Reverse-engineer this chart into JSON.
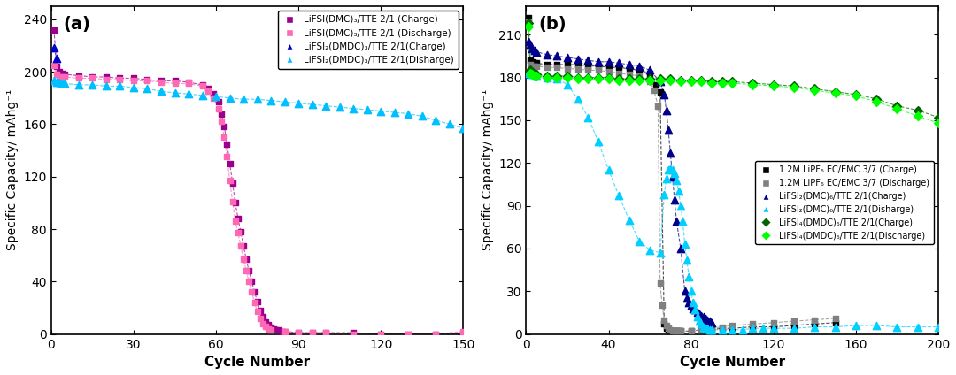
{
  "panel_a": {
    "title": "(a)",
    "xlabel": "Cycle Number",
    "ylabel": "Specific Capacity/ mAhg⁻¹",
    "xlim": [
      0,
      150
    ],
    "ylim": [
      0,
      250
    ],
    "xticks": [
      0,
      30,
      60,
      90,
      120,
      150
    ],
    "yticks": [
      0,
      40,
      80,
      120,
      160,
      200,
      240
    ],
    "series": [
      {
        "label": "LiFSI(DMC)₃/TTE 2/1 (Charge)",
        "color": "#9B008B",
        "marker": "s",
        "marker_size": 5,
        "x": [
          1,
          2,
          3,
          4,
          5,
          10,
          15,
          20,
          25,
          30,
          35,
          40,
          45,
          50,
          55,
          57,
          59,
          61,
          62,
          63,
          64,
          65,
          66,
          67,
          68,
          69,
          70,
          71,
          72,
          73,
          74,
          75,
          76,
          77,
          78,
          79,
          80,
          81,
          82,
          83,
          84,
          85,
          90,
          95,
          100,
          110,
          120,
          130,
          140,
          150
        ],
        "y": [
          232,
          204,
          200,
          199,
          198,
          197,
          196,
          196,
          195,
          195,
          194,
          193,
          193,
          192,
          190,
          187,
          183,
          177,
          168,
          158,
          145,
          130,
          115,
          100,
          88,
          78,
          67,
          57,
          48,
          40,
          32,
          25,
          18,
          13,
          9,
          7,
          5,
          4,
          3,
          3,
          2,
          2,
          1,
          1,
          1,
          1,
          0,
          0,
          0,
          0
        ]
      },
      {
        "label": "LiFSI(DMC)₃/TTE 2/1 (Discharge)",
        "color": "#FF69B4",
        "marker": "s",
        "marker_size": 5,
        "x": [
          1,
          2,
          3,
          4,
          5,
          10,
          15,
          20,
          25,
          30,
          35,
          40,
          45,
          50,
          55,
          57,
          59,
          61,
          62,
          63,
          64,
          65,
          66,
          67,
          68,
          69,
          70,
          71,
          72,
          73,
          74,
          75,
          76,
          77,
          78,
          79,
          80,
          85,
          90,
          95,
          100,
          110,
          120,
          130,
          140,
          150
        ],
        "y": [
          205,
          198,
          196,
          196,
          196,
          195,
          195,
          194,
          194,
          193,
          193,
          192,
          191,
          191,
          189,
          185,
          180,
          172,
          162,
          150,
          135,
          117,
          101,
          86,
          77,
          67,
          57,
          48,
          40,
          32,
          24,
          17,
          12,
          8,
          6,
          4,
          3,
          2,
          1,
          1,
          1,
          0,
          0,
          0,
          0,
          2
        ]
      },
      {
        "label": "LiFSI₂(DMDC)₃/TTE 2/1(Charge)",
        "color": "#0000CD",
        "marker": "^",
        "marker_size": 6,
        "x": [
          1,
          2
        ],
        "y": [
          218,
          210
        ]
      },
      {
        "label": "LiFSI₂(DMDC)₃/TTE 2/1(Disharge)",
        "color": "#00BFFF",
        "marker": "^",
        "marker_size": 6,
        "x": [
          1,
          2,
          3,
          4,
          5,
          10,
          15,
          20,
          25,
          30,
          35,
          40,
          45,
          50,
          55,
          60,
          65,
          70,
          75,
          80,
          85,
          90,
          95,
          100,
          105,
          110,
          115,
          120,
          125,
          130,
          135,
          140,
          145,
          150
        ],
        "y": [
          193,
          192,
          192,
          191,
          191,
          190,
          190,
          189,
          189,
          188,
          187,
          185,
          184,
          183,
          182,
          181,
          180,
          179,
          179,
          178,
          177,
          176,
          175,
          174,
          173,
          172,
          171,
          170,
          169,
          168,
          166,
          163,
          160,
          157
        ]
      }
    ]
  },
  "panel_b": {
    "title": "(b)",
    "xlabel": "Cycle Number",
    "ylabel": "Specific Capacity/ mAhg⁻¹",
    "xlim": [
      0,
      200
    ],
    "ylim": [
      0,
      230
    ],
    "xticks": [
      0,
      40,
      80,
      120,
      160,
      200
    ],
    "yticks": [
      0,
      30,
      60,
      90,
      120,
      150,
      180,
      210
    ],
    "series": [
      {
        "label": "1.2M LiPF₆ EC/EMC 3/7 (Charge)",
        "color": "#000000",
        "marker": "s",
        "marker_size": 5,
        "x": [
          1,
          2,
          3,
          4,
          5,
          10,
          15,
          20,
          25,
          30,
          35,
          40,
          45,
          50,
          55,
          60,
          63,
          65,
          67,
          68,
          69,
          70,
          71,
          72,
          73,
          74,
          75,
          80,
          85,
          90,
          95,
          100,
          110,
          120,
          130,
          140,
          150
        ],
        "y": [
          222,
          192,
          191,
          190,
          190,
          189,
          189,
          189,
          189,
          188,
          188,
          187,
          187,
          186,
          185,
          183,
          175,
          170,
          7,
          4,
          3,
          2,
          2,
          2,
          2,
          2,
          2,
          2,
          3,
          3,
          4,
          4,
          5,
          5,
          6,
          7,
          8
        ]
      },
      {
        "label": "1.2M LiPF₆ EC/EMC 3/7 (Discharge)",
        "color": "#808080",
        "marker": "s",
        "marker_size": 5,
        "x": [
          1,
          2,
          3,
          4,
          5,
          10,
          15,
          20,
          25,
          30,
          35,
          40,
          45,
          50,
          55,
          60,
          62,
          64,
          65,
          66,
          67,
          68,
          69,
          70,
          71,
          72,
          73,
          74,
          75,
          80,
          85,
          90,
          95,
          100,
          110,
          120,
          130,
          140,
          150
        ],
        "y": [
          219,
          189,
          188,
          188,
          188,
          187,
          187,
          186,
          186,
          185,
          185,
          184,
          183,
          182,
          181,
          177,
          171,
          160,
          36,
          20,
          10,
          6,
          4,
          3,
          2,
          2,
          2,
          2,
          2,
          2,
          3,
          4,
          5,
          6,
          7,
          8,
          9,
          10,
          11
        ]
      },
      {
        "label": "LiFSI₂(DMC)₆/TTE 2/1(Charge)",
        "color": "#00008B",
        "marker": "^",
        "marker_size": 6,
        "x": [
          1,
          2,
          3,
          4,
          5,
          10,
          15,
          20,
          25,
          30,
          35,
          40,
          45,
          50,
          55,
          60,
          65,
          67,
          68,
          69,
          70,
          71,
          72,
          73,
          75,
          77,
          78,
          79,
          80,
          81,
          82,
          83,
          84,
          85,
          86,
          87,
          88,
          89,
          90
        ],
        "y": [
          205,
          203,
          200,
          199,
          198,
          196,
          195,
          194,
          193,
          192,
          191,
          191,
          190,
          189,
          188,
          185,
          177,
          168,
          157,
          143,
          127,
          110,
          94,
          79,
          60,
          30,
          25,
          22,
          20,
          18,
          17,
          15,
          14,
          13,
          12,
          11,
          10,
          9,
          8
        ]
      },
      {
        "label": "LiFSI₂(DMC)₆/TTE 2/1(Disharge)",
        "color": "#00CFFF",
        "marker": "^",
        "marker_size": 6,
        "x": [
          1,
          2,
          3,
          4,
          5,
          10,
          15,
          20,
          25,
          30,
          35,
          40,
          45,
          50,
          55,
          60,
          65,
          67,
          68,
          69,
          70,
          71,
          72,
          73,
          74,
          75,
          76,
          77,
          78,
          79,
          80,
          81,
          82,
          83,
          84,
          85,
          86,
          87,
          88,
          89,
          90,
          95,
          100,
          105,
          110,
          115,
          120,
          130,
          140,
          150,
          160,
          170,
          180,
          190,
          200
        ],
        "y": [
          183,
          183,
          182,
          182,
          181,
          180,
          179,
          175,
          165,
          152,
          135,
          115,
          97,
          80,
          65,
          59,
          57,
          98,
          109,
          115,
          116,
          115,
          113,
          108,
          100,
          90,
          79,
          63,
          52,
          40,
          30,
          22,
          17,
          12,
          9,
          7,
          5,
          4,
          4,
          3,
          3,
          3,
          3,
          3,
          4,
          4,
          4,
          4,
          5,
          5,
          6,
          6,
          5,
          5,
          5
        ]
      },
      {
        "label": "LiFSI₄(DMDC)₆/TTE 2/1(Charge)",
        "color": "#006400",
        "marker": "D",
        "marker_size": 5,
        "x": [
          1,
          2,
          3,
          4,
          5,
          10,
          15,
          20,
          25,
          30,
          35,
          40,
          45,
          50,
          55,
          60,
          65,
          70,
          75,
          80,
          85,
          90,
          95,
          100,
          110,
          120,
          130,
          140,
          150,
          160,
          170,
          180,
          190,
          200
        ],
        "y": [
          218,
          185,
          183,
          182,
          182,
          181,
          181,
          181,
          180,
          180,
          180,
          180,
          179,
          179,
          179,
          179,
          179,
          179,
          178,
          178,
          178,
          177,
          177,
          177,
          176,
          175,
          174,
          172,
          170,
          168,
          165,
          160,
          157,
          152
        ]
      },
      {
        "label": "LiFSI₄(DMDC)₆/TTE 2/1(Discharge)",
        "color": "#00FF00",
        "marker": "D",
        "marker_size": 5,
        "x": [
          1,
          2,
          3,
          4,
          5,
          10,
          15,
          20,
          25,
          30,
          35,
          40,
          45,
          50,
          55,
          60,
          65,
          70,
          75,
          80,
          85,
          90,
          95,
          100,
          110,
          120,
          130,
          140,
          150,
          160,
          170,
          180,
          190,
          200
        ],
        "y": [
          216,
          183,
          182,
          181,
          181,
          180,
          180,
          180,
          179,
          179,
          179,
          179,
          178,
          178,
          178,
          178,
          178,
          178,
          177,
          177,
          177,
          176,
          176,
          176,
          175,
          174,
          173,
          171,
          169,
          167,
          163,
          158,
          153,
          148
        ]
      }
    ]
  }
}
